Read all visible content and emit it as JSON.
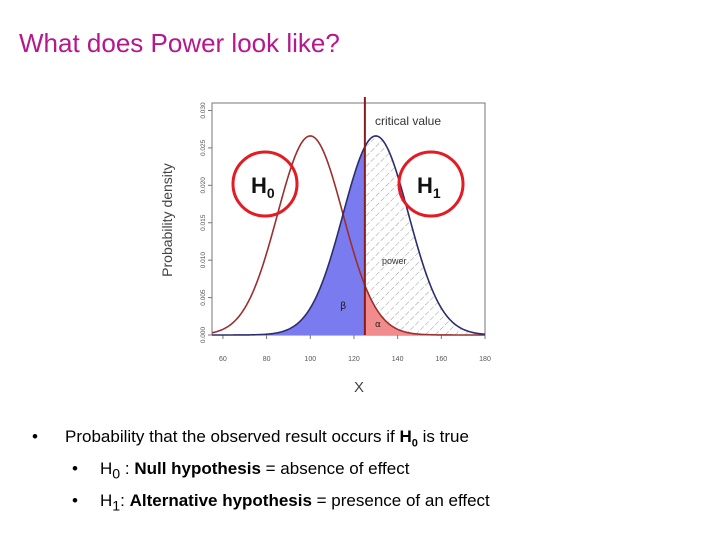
{
  "slide": {
    "title": "What does Power look like?"
  },
  "figure": {
    "ylabel": "Probability density",
    "xlabel": "X",
    "critical_label": "critical value",
    "h0_letter": "H",
    "h0_sub": "0",
    "h1_letter": "H",
    "h1_sub": "1",
    "power_label": "power",
    "beta_label": "β",
    "alpha_label": "α",
    "x_ticks": [
      "60",
      "80",
      "100",
      "120",
      "140",
      "160",
      "180"
    ],
    "y_ticks": [
      "0.000",
      "0.005",
      "0.010",
      "0.015",
      "0.020",
      "0.025",
      "0.030"
    ],
    "x_tick_values": [
      60,
      80,
      100,
      120,
      140,
      160,
      180
    ],
    "y_tick_values": [
      0,
      0.005,
      0.01,
      0.015,
      0.02,
      0.025,
      0.03
    ],
    "colors": {
      "curve": "#9b2f2f",
      "critical_line": "#8b1a1a",
      "beta_fill": "#7b7bf0",
      "alpha_fill": "#f28c8c",
      "circle": "#e31b23"
    }
  },
  "chart_data": {
    "type": "line",
    "xlabel": "X",
    "ylabel": "Probability density",
    "xlim": [
      55,
      180
    ],
    "ylim": [
      0,
      0.031
    ],
    "critical_value": 125,
    "series": [
      {
        "name": "H0",
        "mean": 100,
        "sd": 15,
        "peak": 0.0266
      },
      {
        "name": "H1",
        "mean": 130,
        "sd": 15,
        "peak": 0.0266
      }
    ]
  },
  "bullets": {
    "b1_text": "Probability that the observed result occurs if ",
    "b1_h": "H",
    "b1_sub": "0",
    "b1_tail": " is true",
    "b2_h": "H",
    "b2_sub": "0",
    "b2_sep": " : ",
    "b2_bold": "Null hypothesis",
    "b2_tail": " = absence of effect",
    "b3_h": "H",
    "b3_sub": "1",
    "b3_sep": ": ",
    "b3_bold": "Alternative hypothesis",
    "b3_tail": " = presence of an effect"
  }
}
